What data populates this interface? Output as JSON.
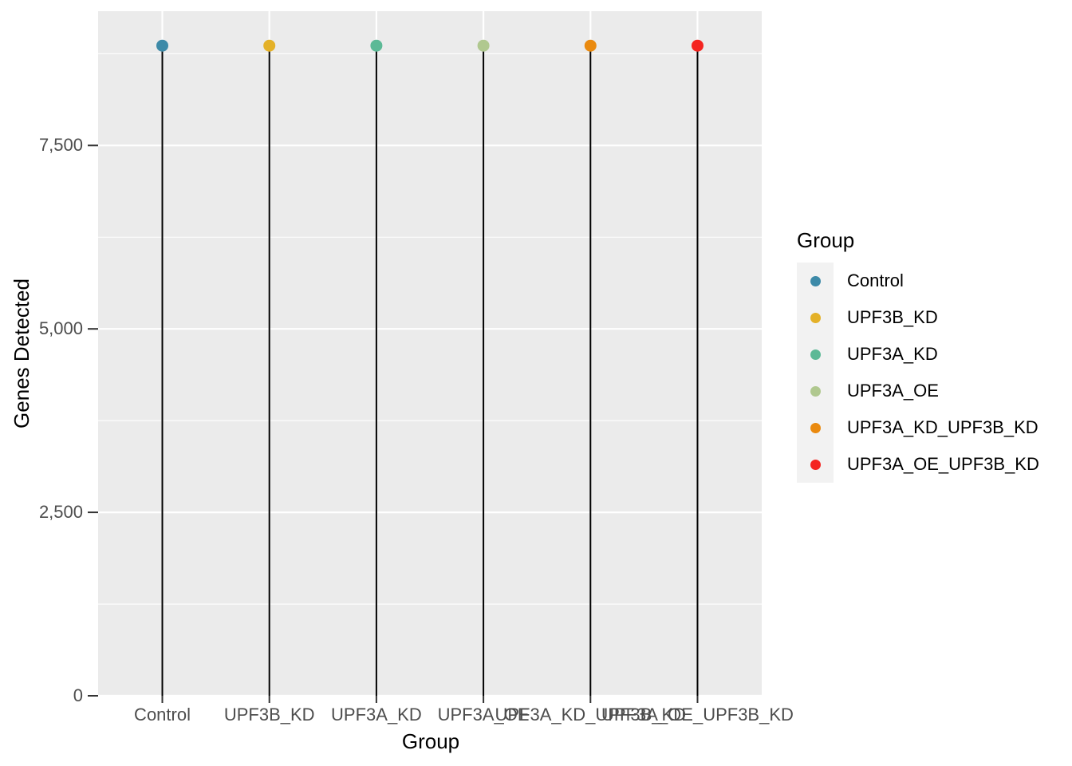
{
  "chart_data": {
    "type": "lollipop",
    "title": "",
    "xlabel": "Group",
    "ylabel": "Genes Detected",
    "categories": [
      "Control",
      "UPF3B_KD",
      "UPF3A_KD",
      "UPF3A_OE",
      "UPF3A_KD_UPF3B_KD",
      "UPF3A_OE_UPF3B_KD"
    ],
    "values": [
      8860,
      8860,
      8860,
      8860,
      8860,
      8860
    ],
    "colors": [
      "#3D8AA8",
      "#E4B128",
      "#5CB996",
      "#B0C88F",
      "#EA8A0F",
      "#F42420"
    ],
    "ylim": [
      0,
      9330
    ],
    "y_major_ticks": {
      "values": [
        0,
        2500,
        5000,
        7500
      ],
      "labels": [
        "0",
        "2,500",
        "5,000",
        "7,500"
      ]
    },
    "y_minor_ticks": [
      1250,
      3750,
      6250,
      8750
    ],
    "grid": true,
    "legend_position": "right",
    "panel_bg": "#EBEBEB",
    "grid_color": "#FFFFFF",
    "stem_color": "#000000",
    "tick_color": "#333333",
    "axis_text_color": "#4D4D4D",
    "legend_key_bg": "#F2F2F2",
    "legend": {
      "title": "Group",
      "items": [
        {
          "label": "Control",
          "color": "#3D8AA8"
        },
        {
          "label": "UPF3B_KD",
          "color": "#E4B128"
        },
        {
          "label": "UPF3A_KD",
          "color": "#5CB996"
        },
        {
          "label": "UPF3A_OE",
          "color": "#B0C88F"
        },
        {
          "label": "UPF3A_KD_UPF3B_KD",
          "color": "#EA8A0F"
        },
        {
          "label": "UPF3A_OE_UPF3B_KD",
          "color": "#F42420"
        }
      ]
    }
  }
}
